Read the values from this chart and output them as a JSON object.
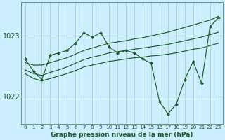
{
  "xlabel": "Graphe pression niveau de la mer (hPa)",
  "background_color": "#cceeff",
  "grid_color": "#aaccbb",
  "line_color": "#1a5c2a",
  "x_hours": [
    0,
    1,
    2,
    3,
    4,
    5,
    6,
    7,
    8,
    9,
    10,
    11,
    12,
    13,
    14,
    15,
    16,
    17,
    18,
    19,
    20,
    21,
    22,
    23
  ],
  "series_jagged": [
    1022.62,
    1022.42,
    1022.28,
    1022.68,
    1022.72,
    1022.76,
    1022.88,
    1023.05,
    1022.98,
    1023.05,
    1022.82,
    1022.72,
    1022.76,
    1022.72,
    1022.62,
    1022.55,
    1021.92,
    1021.72,
    1021.88,
    1022.28,
    1022.58,
    1022.22,
    1023.15,
    1023.3
  ],
  "series_upper": [
    1022.56,
    1022.52,
    1022.52,
    1022.56,
    1022.6,
    1022.64,
    1022.7,
    1022.76,
    1022.8,
    1022.84,
    1022.88,
    1022.9,
    1022.92,
    1022.95,
    1022.97,
    1023.0,
    1023.03,
    1023.06,
    1023.1,
    1023.14,
    1023.18,
    1023.22,
    1023.26,
    1023.32
  ],
  "series_mid_upper": [
    1022.44,
    1022.38,
    1022.35,
    1022.4,
    1022.44,
    1022.49,
    1022.55,
    1022.61,
    1022.65,
    1022.68,
    1022.72,
    1022.74,
    1022.76,
    1022.78,
    1022.8,
    1022.82,
    1022.84,
    1022.86,
    1022.89,
    1022.92,
    1022.95,
    1022.98,
    1023.02,
    1023.06
  ],
  "series_mid_lower": [
    1022.38,
    1022.3,
    1022.26,
    1022.3,
    1022.34,
    1022.38,
    1022.43,
    1022.49,
    1022.52,
    1022.55,
    1022.58,
    1022.6,
    1022.62,
    1022.64,
    1022.65,
    1022.67,
    1022.68,
    1022.7,
    1022.72,
    1022.75,
    1022.78,
    1022.8,
    1022.84,
    1022.88
  ],
  "ylim_min": 1021.55,
  "ylim_max": 1023.55,
  "yticks": [
    1022.0,
    1023.0
  ],
  "figsize": [
    3.2,
    2.0
  ],
  "dpi": 100
}
